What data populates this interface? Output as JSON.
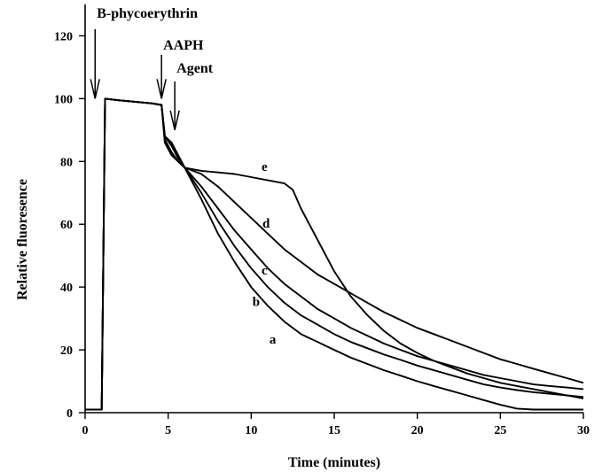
{
  "chart_data": {
    "type": "line",
    "xlabel": "Time (minutes)",
    "ylabel": "Relative fluoresence",
    "xlim": [
      0,
      30
    ],
    "ylim": [
      0,
      130
    ],
    "xticks": [
      0,
      5,
      10,
      15,
      20,
      25,
      30
    ],
    "yticks": [
      0,
      20,
      40,
      60,
      80,
      100,
      120
    ],
    "grid": false,
    "annotations": [
      {
        "text": "B-phycoerythrin",
        "x": 0.6
      },
      {
        "text": "AAPH",
        "x": 4.6
      },
      {
        "text": "Agent",
        "x": 5.4
      }
    ],
    "series": [
      {
        "name": "a",
        "x": [
          0,
          1,
          1.2,
          2,
          3,
          4,
          4.6,
          4.8,
          5.2,
          5.6,
          6,
          7,
          8,
          9,
          10,
          11,
          12,
          13,
          14,
          15,
          16,
          17,
          18,
          19,
          20,
          21,
          22,
          23,
          24,
          25,
          26,
          27,
          28,
          29,
          30
        ],
        "y": [
          1,
          1,
          100,
          99.5,
          99,
          98.5,
          98,
          86,
          82,
          80,
          78,
          68,
          57,
          48,
          40,
          34,
          29,
          25,
          22.5,
          20,
          17.5,
          15.5,
          13.5,
          11.8,
          10,
          8.5,
          7,
          5.5,
          4,
          2.5,
          1.3,
          1,
          1,
          1,
          1
        ]
      },
      {
        "name": "b",
        "x": [
          0,
          1,
          1.2,
          2,
          3,
          4,
          4.6,
          4.8,
          5.2,
          5.6,
          6,
          7,
          8,
          9,
          10,
          11,
          12,
          13,
          14,
          15,
          16,
          17,
          18,
          19,
          20,
          21,
          22,
          23,
          24,
          25,
          26,
          27,
          28,
          29,
          30
        ],
        "y": [
          1,
          1,
          100,
          99.5,
          99,
          98.5,
          98,
          87,
          83,
          80,
          78,
          70,
          61,
          53,
          46,
          40,
          35,
          31,
          28,
          25,
          22.5,
          20.5,
          18.5,
          16.8,
          15,
          13.5,
          12,
          10.5,
          9,
          8,
          7.2,
          6.5,
          6,
          5.5,
          5
        ]
      },
      {
        "name": "c",
        "x": [
          0,
          1,
          1.2,
          2,
          3,
          4,
          4.6,
          4.8,
          5.2,
          5.6,
          6,
          7,
          8,
          9,
          10,
          11,
          12,
          13,
          14,
          15,
          16,
          17,
          18,
          19,
          20,
          21,
          22,
          23,
          24,
          25,
          26,
          27,
          28,
          29,
          30
        ],
        "y": [
          1,
          1,
          100,
          99.5,
          99,
          98.5,
          98,
          88,
          85,
          81,
          78,
          72,
          65,
          58,
          52,
          46,
          41,
          37,
          33,
          30,
          27,
          24.5,
          22,
          20,
          18,
          16.5,
          15,
          13.5,
          12,
          11,
          10,
          9,
          8.5,
          8,
          7.5
        ]
      },
      {
        "name": "d",
        "x": [
          0,
          1,
          1.2,
          2,
          3,
          4,
          4.6,
          4.8,
          5.2,
          5.6,
          6,
          7,
          8,
          9,
          10,
          11,
          12,
          13,
          14,
          15,
          16,
          17,
          18,
          19,
          20,
          21,
          22,
          23,
          24,
          25,
          26,
          27,
          28,
          29,
          30
        ],
        "y": [
          1,
          1,
          100,
          99.5,
          99,
          98.5,
          98,
          88,
          86,
          82,
          78,
          76,
          72,
          67,
          62,
          57,
          52,
          48,
          44,
          41,
          38,
          35,
          32,
          29.5,
          27,
          25,
          23,
          21,
          19,
          17,
          15.5,
          14,
          12.5,
          11,
          9.5
        ]
      },
      {
        "name": "e",
        "x": [
          0,
          1,
          1.2,
          2,
          3,
          4,
          4.6,
          4.8,
          5.2,
          5.6,
          6,
          7,
          8,
          9,
          10,
          11,
          12,
          12.5,
          13,
          14,
          15,
          16,
          17,
          18,
          19,
          20,
          21,
          22,
          23,
          24,
          25,
          26,
          27,
          28,
          29,
          30
        ],
        "y": [
          1,
          1,
          100,
          99.5,
          99,
          98.5,
          98,
          88,
          86,
          82,
          78,
          77,
          76.5,
          76,
          75,
          74,
          73,
          71,
          65,
          55,
          45,
          37,
          31,
          26,
          22,
          19,
          16.5,
          14.5,
          12.5,
          11,
          9.5,
          8.5,
          7.5,
          6.5,
          5.5,
          4.5
        ]
      }
    ]
  }
}
